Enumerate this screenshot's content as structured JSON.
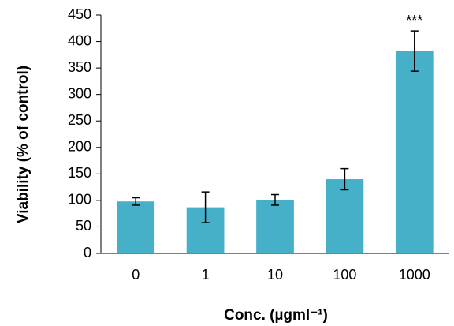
{
  "chart_data": {
    "type": "bar",
    "x_label": "Conc. (µgml⁻¹)",
    "y_label": "Viability (% of control)",
    "categories": [
      "0",
      "1",
      "10",
      "100",
      "1000"
    ],
    "values": [
      98,
      87,
      101,
      140,
      382
    ],
    "errors": [
      7,
      29,
      10,
      20,
      38
    ],
    "color": "#45b0c8",
    "ylim": [
      0,
      450
    ],
    "yticks": [
      0,
      50,
      100,
      150,
      200,
      250,
      300,
      350,
      400,
      450
    ],
    "annotations": [
      {
        "category": "1000",
        "text": "***"
      }
    ]
  }
}
